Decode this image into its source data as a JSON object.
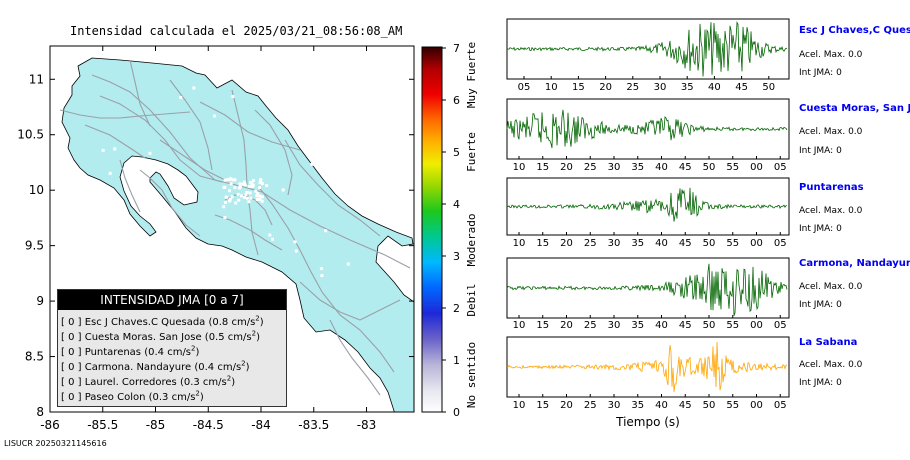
{
  "map": {
    "title": "Intensidad calculada el 2025/03/21_08:56:08_AM",
    "footer_id": "LISUCR 20250321145616",
    "x_ticks": [
      "-86",
      "-85.5",
      "-85",
      "-84.5",
      "-84",
      "-83.5",
      "-83"
    ],
    "y_ticks": [
      "11",
      "10.5",
      "10",
      "9.5",
      "9",
      "8.5",
      "8"
    ],
    "colors": {
      "land": "#b3ecee",
      "ocean": "#ffffff",
      "border": "#000000",
      "roads": "#9aa0a8"
    },
    "legend": {
      "title": "INTENSIDAD JMA [0 a 7]",
      "items": [
        {
          "code": "[ 0 ]",
          "station": "Esc J Chaves.C Quesada",
          "accel": "(0.8 cm/s",
          "exp": "2",
          "close": ")"
        },
        {
          "code": "[ 0 ]",
          "station": "Cuesta Moras. San Jose",
          "accel": "(0.5 cm/s",
          "exp": "2",
          "close": ")"
        },
        {
          "code": "[ 0 ]",
          "station": "Puntarenas",
          "accel": "(0.4 cm/s",
          "exp": "2",
          "close": ")"
        },
        {
          "code": "[ 0 ]",
          "station": "Carmona. Nandayure",
          "accel": "(0.4 cm/s",
          "exp": "2",
          "close": ")"
        },
        {
          "code": "[ 0 ]",
          "station": "Laurel. Corredores",
          "accel": "(0.3 cm/s",
          "exp": "2",
          "close": ")"
        },
        {
          "code": "[ 0 ]",
          "station": "Paseo Colon",
          "accel": "(0.3 cm/s",
          "exp": "2",
          "close": ")"
        }
      ]
    }
  },
  "colorbar": {
    "ticks": [
      "7",
      "6",
      "5",
      "4",
      "3",
      "2",
      "1",
      "0"
    ],
    "category_labels": [
      "Muy Fuerte",
      "Fuerte",
      "Moderado",
      "Debil",
      "No sentido"
    ]
  },
  "stations": [
    {
      "name": "Esc J Chaves,C Quesada",
      "accel_label": "Acel. Max.",
      "accel_value": "0.0",
      "int_label": "Int JMA:",
      "int_value": "0",
      "color": "#006400",
      "ticks": [
        "05",
        "10",
        "15",
        "20",
        "25",
        "30",
        "35",
        "40",
        "45",
        "50"
      ]
    },
    {
      "name": "Cuesta Moras, San Jose",
      "accel_label": "Acel. Max.",
      "accel_value": "0.0",
      "int_label": "Int JMA:",
      "int_value": "0",
      "color": "#006400",
      "ticks": [
        "10",
        "15",
        "20",
        "25",
        "30",
        "35",
        "40",
        "45",
        "50",
        "55",
        "00",
        "05"
      ]
    },
    {
      "name": "Puntarenas",
      "accel_label": "Acel. Max.",
      "accel_value": "0.0",
      "int_label": "Int JMA:",
      "int_value": "0",
      "color": "#006400",
      "ticks": [
        "10",
        "15",
        "20",
        "25",
        "30",
        "35",
        "40",
        "45",
        "50",
        "55",
        "00",
        "05"
      ]
    },
    {
      "name": "Carmona, Nandayure",
      "accel_label": "Acel. Max.",
      "accel_value": "0.0",
      "int_label": "Int JMA:",
      "int_value": "0",
      "color": "#006400",
      "ticks": [
        "10",
        "15",
        "20",
        "25",
        "30",
        "35",
        "40",
        "45",
        "50",
        "55",
        "00",
        "05"
      ]
    },
    {
      "name": "La Sabana",
      "accel_label": "Acel. Max.",
      "accel_value": "0.0",
      "int_label": "Int JMA:",
      "int_value": "0",
      "color": "#ffa500",
      "ticks": [
        "10",
        "15",
        "20",
        "25",
        "30",
        "35",
        "40",
        "45",
        "50",
        "55",
        "00",
        "05"
      ]
    }
  ],
  "chart_data": [
    {
      "type": "heatmap",
      "title": "Intensidad calculada el 2025/03/21_08:56:08_AM",
      "x_ticks": [
        -86,
        -85.5,
        -85,
        -84.5,
        -84,
        -83.5,
        -83
      ],
      "y_ticks": [
        11,
        10.5,
        10,
        9.5,
        9,
        8.5,
        8
      ],
      "xlim": [
        -86,
        -82.55
      ],
      "ylim": [
        8,
        11.3
      ],
      "colorbar": {
        "range": [
          0,
          7
        ],
        "labels": [
          "No sentido",
          "Debil",
          "Moderado",
          "Fuerte",
          "Muy Fuerte"
        ]
      },
      "legend_title": "INTENSIDAD JMA [0 a 7]",
      "stations": [
        {
          "name": "Esc J Chaves.C Quesada",
          "intensity": 0,
          "accel_cm_s2": 0.8
        },
        {
          "name": "Cuesta Moras. San Jose",
          "intensity": 0,
          "accel_cm_s2": 0.5
        },
        {
          "name": "Puntarenas",
          "intensity": 0,
          "accel_cm_s2": 0.4
        },
        {
          "name": "Carmona. Nandayure",
          "intensity": 0,
          "accel_cm_s2": 0.4
        },
        {
          "name": "Laurel. Corredores",
          "intensity": 0,
          "accel_cm_s2": 0.3
        },
        {
          "name": "Paseo Colon",
          "intensity": 0,
          "accel_cm_s2": 0.3
        }
      ]
    },
    {
      "type": "line",
      "xlabel": "Tiempo (s)",
      "series": [
        {
          "name": "Esc J Chaves,C Quesada",
          "acel_max": 0.0,
          "int_jma": 0
        },
        {
          "name": "Cuesta Moras, San Jose",
          "acel_max": 0.0,
          "int_jma": 0
        },
        {
          "name": "Puntarenas",
          "acel_max": 0.0,
          "int_jma": 0
        },
        {
          "name": "Carmona, Nandayure",
          "acel_max": 0.0,
          "int_jma": 0
        },
        {
          "name": "La Sabana",
          "acel_max": 0.0,
          "int_jma": 0
        }
      ]
    }
  ],
  "xlabel": "Tiempo (s)"
}
